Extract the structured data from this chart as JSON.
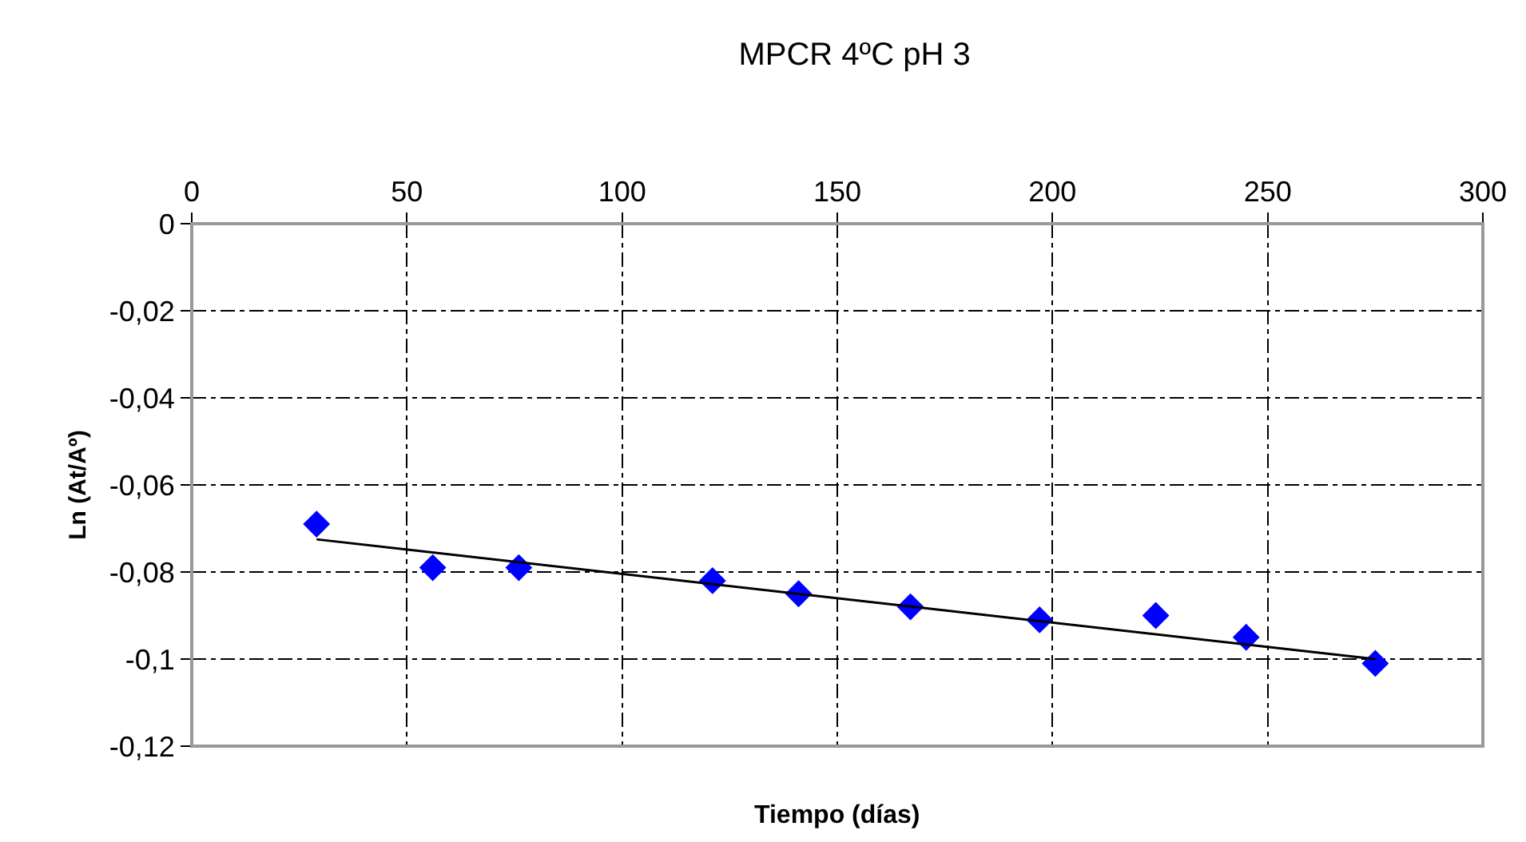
{
  "chart_data": {
    "type": "scatter",
    "title": "MPCR 4ºC pH 3",
    "xlabel": "Tiempo (días)",
    "ylabel": "Ln (At/Aº)",
    "xlim": [
      0,
      300
    ],
    "xticks": [
      0,
      50,
      100,
      150,
      200,
      250,
      300
    ],
    "ylim": [
      -0.12,
      0
    ],
    "yticks": [
      {
        "value": 0,
        "label": "0"
      },
      {
        "value": -0.02,
        "label": "-0,02"
      },
      {
        "value": -0.04,
        "label": "-0,04"
      },
      {
        "value": -0.06,
        "label": "-0,06"
      },
      {
        "value": -0.08,
        "label": "-0,08"
      },
      {
        "value": -0.1,
        "label": "-0,1"
      },
      {
        "value": -0.12,
        "label": "-0,12"
      }
    ],
    "grid": true,
    "legend": false,
    "series": [
      {
        "color": "#0000ff",
        "marker": "diamond",
        "x": [
          29,
          56,
          76,
          121,
          141,
          167,
          197,
          224,
          245,
          275
        ],
        "values": [
          -0.069,
          -0.079,
          -0.079,
          -0.082,
          -0.085,
          -0.088,
          -0.091,
          -0.09,
          -0.095,
          -0.101
        ]
      },
      {
        "type": "line",
        "color": "#000000",
        "marker": "none",
        "line_style": "solid",
        "x": [
          29,
          275
        ],
        "values": [
          -0.0725,
          -0.1
        ]
      }
    ]
  }
}
